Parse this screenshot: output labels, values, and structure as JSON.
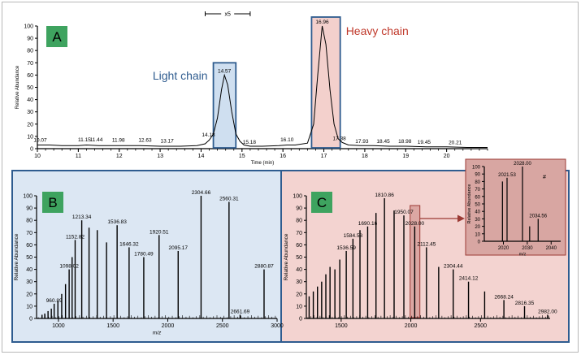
{
  "chart_data": [
    {
      "id": "A",
      "type": "line",
      "panel_label": "A",
      "xlabel": "Time (min)",
      "ylabel": "Relative Abundance",
      "xlim": [
        10,
        21
      ],
      "ylim": [
        0,
        100
      ],
      "x_ticks": [
        10,
        11,
        12,
        13,
        14,
        15,
        16,
        17,
        18,
        19,
        20
      ],
      "y_ticks": [
        0,
        10,
        20,
        30,
        40,
        50,
        60,
        70,
        80,
        90,
        100
      ],
      "zoom_label": "x5",
      "peak_boxes": [
        {
          "label": "Light chain",
          "x_from": 14.3,
          "x_to": 14.85,
          "color": "#2f5c8f",
          "fill": "#cfdff0"
        },
        {
          "label": "Heavy chain",
          "x_from": 16.7,
          "x_to": 17.4,
          "color": "#2f5c8f",
          "fill": "#f3d0cc",
          "label_color": "#c0392b"
        }
      ],
      "peak_labels": [
        {
          "x": 10.07,
          "y": 3.5,
          "text": "10.07"
        },
        {
          "x": 11.15,
          "y": 4,
          "text": "11.15"
        },
        {
          "x": 11.44,
          "y": 4,
          "text": "11.44"
        },
        {
          "x": 11.98,
          "y": 3.5,
          "text": "11.98"
        },
        {
          "x": 12.63,
          "y": 3.5,
          "text": "12.63"
        },
        {
          "x": 13.17,
          "y": 3,
          "text": "13.17"
        },
        {
          "x": 14.18,
          "y": 8,
          "text": "14.18"
        },
        {
          "x": 14.57,
          "y": 60,
          "text": "14.57"
        },
        {
          "x": 15.18,
          "y": 2,
          "text": "15.18"
        },
        {
          "x": 16.1,
          "y": 4,
          "text": "16.10"
        },
        {
          "x": 16.96,
          "y": 100,
          "text": "16.96"
        },
        {
          "x": 17.38,
          "y": 5,
          "text": "17.38"
        },
        {
          "x": 17.93,
          "y": 2.5,
          "text": "17.93"
        },
        {
          "x": 18.45,
          "y": 2.5,
          "text": "18.45"
        },
        {
          "x": 18.98,
          "y": 2.5,
          "text": "18.98"
        },
        {
          "x": 19.45,
          "y": 2,
          "text": "19.45"
        },
        {
          "x": 20.21,
          "y": 1.5,
          "text": "20.21"
        }
      ],
      "series": [
        {
          "x": [
            10.0,
            10.3,
            10.6,
            11.0,
            11.2,
            11.5,
            12.0,
            12.5,
            13.0,
            13.5,
            13.9,
            14.1,
            14.2,
            14.3,
            14.4,
            14.5,
            14.57,
            14.65,
            14.75,
            14.85,
            14.95,
            15.05,
            15.2,
            15.5,
            15.9,
            16.1,
            16.3,
            16.6,
            16.75,
            16.85,
            16.96,
            17.05,
            17.15,
            17.25,
            17.35,
            17.45,
            17.6,
            17.9,
            18.2,
            18.6,
            19.0,
            19.5,
            20.0,
            20.5,
            21.0
          ],
          "y": [
            3,
            3,
            2.5,
            2.5,
            3,
            2.5,
            2.5,
            2.5,
            2,
            2,
            2.5,
            4,
            7,
            12,
            25,
            48,
            60,
            52,
            30,
            12,
            6,
            3,
            2,
            2,
            2.5,
            3,
            3,
            4.5,
            20,
            60,
            100,
            85,
            48,
            20,
            8,
            5,
            3,
            2.5,
            2.5,
            2,
            2,
            1.5,
            1.5,
            1,
            1
          ]
        }
      ]
    },
    {
      "id": "B",
      "type": "bar",
      "panel_label": "B",
      "xlabel": "m/z",
      "ylabel": "Relative Abundance",
      "xlim": [
        800,
        3000
      ],
      "ylim": [
        0,
        100
      ],
      "x_ticks": [
        1000,
        1500,
        2000,
        2500,
        3000
      ],
      "y_ticks": [
        0,
        10,
        20,
        30,
        40,
        50,
        60,
        70,
        80,
        90,
        100
      ],
      "annotations": [
        "960.89",
        "1098.02",
        "1152.82",
        "1213.34",
        "1536.83",
        "1646.32",
        "1780.49",
        "1920.51",
        "2095.17",
        "2304.66",
        "2560.31",
        "2661.69",
        "2880.87"
      ],
      "sticks": [
        {
          "mz": 850,
          "y": 3
        },
        {
          "mz": 875,
          "y": 4
        },
        {
          "mz": 905,
          "y": 6
        },
        {
          "mz": 935,
          "y": 8
        },
        {
          "mz": 960.89,
          "y": 12,
          "label": "960.89"
        },
        {
          "mz": 995,
          "y": 14
        },
        {
          "mz": 1030,
          "y": 20
        },
        {
          "mz": 1065,
          "y": 28
        },
        {
          "mz": 1098.02,
          "y": 40,
          "label": "1098.02"
        },
        {
          "mz": 1125,
          "y": 50
        },
        {
          "mz": 1152.82,
          "y": 64,
          "label": "1152.82"
        },
        {
          "mz": 1213.34,
          "y": 80,
          "label": "1213.34"
        },
        {
          "mz": 1280,
          "y": 74
        },
        {
          "mz": 1355,
          "y": 72
        },
        {
          "mz": 1440,
          "y": 62
        },
        {
          "mz": 1536.83,
          "y": 76,
          "label": "1536.83"
        },
        {
          "mz": 1646.32,
          "y": 58,
          "label": "1646.32"
        },
        {
          "mz": 1780.49,
          "y": 50,
          "label": "1780.49"
        },
        {
          "mz": 1920.51,
          "y": 68,
          "label": "1920.51"
        },
        {
          "mz": 2095.17,
          "y": 55,
          "label": "2095.17"
        },
        {
          "mz": 2304.66,
          "y": 100,
          "label": "2304.66"
        },
        {
          "mz": 2560.31,
          "y": 95,
          "label": "2560.31"
        },
        {
          "mz": 2661.69,
          "y": 3,
          "label": "2661.69"
        },
        {
          "mz": 2880.87,
          "y": 40,
          "label": "2880.87"
        }
      ]
    },
    {
      "id": "C",
      "type": "bar",
      "panel_label": "C",
      "xlabel": "",
      "ylabel": "Relative Abundance",
      "xlim": [
        1250,
        3000
      ],
      "ylim": [
        0,
        100
      ],
      "x_ticks": [
        1500,
        2000,
        2500
      ],
      "y_ticks": [
        0,
        10,
        20,
        30,
        40,
        50,
        60,
        70,
        80,
        90,
        100
      ],
      "annotations": [
        "1536.59",
        "1584.58",
        "1690.16",
        "1810.86",
        "1950.07",
        "2028.00",
        "2112.45",
        "2304.44",
        "2414.12",
        "2668.24",
        "2816.35",
        "2982.00"
      ],
      "highlight_mz": [
        1995,
        2065
      ],
      "sticks": [
        {
          "mz": 1270,
          "y": 18
        },
        {
          "mz": 1300,
          "y": 22
        },
        {
          "mz": 1330,
          "y": 26
        },
        {
          "mz": 1360,
          "y": 30
        },
        {
          "mz": 1390,
          "y": 36
        },
        {
          "mz": 1420,
          "y": 42
        },
        {
          "mz": 1455,
          "y": 40
        },
        {
          "mz": 1490,
          "y": 48
        },
        {
          "mz": 1536.59,
          "y": 55,
          "label": "1536.59"
        },
        {
          "mz": 1584.58,
          "y": 65,
          "label": "1584.58"
        },
        {
          "mz": 1635,
          "y": 72
        },
        {
          "mz": 1690.16,
          "y": 75,
          "label": "1690.16"
        },
        {
          "mz": 1750,
          "y": 86
        },
        {
          "mz": 1810.86,
          "y": 98,
          "label": "1810.86"
        },
        {
          "mz": 1880,
          "y": 88
        },
        {
          "mz": 1950.07,
          "y": 84,
          "label": "1950.07"
        },
        {
          "mz": 2028.0,
          "y": 75,
          "label": "2028.00"
        },
        {
          "mz": 2112.45,
          "y": 58,
          "label": "2112.45"
        },
        {
          "mz": 2200,
          "y": 42
        },
        {
          "mz": 2304.44,
          "y": 40,
          "label": "2304.44"
        },
        {
          "mz": 2414.12,
          "y": 30,
          "label": "2414.12"
        },
        {
          "mz": 2530,
          "y": 22
        },
        {
          "mz": 2668.24,
          "y": 15,
          "label": "2668.24"
        },
        {
          "mz": 2816.35,
          "y": 10,
          "label": "2816.35"
        },
        {
          "mz": 2982.0,
          "y": 3,
          "label": "2982.00"
        }
      ]
    },
    {
      "id": "C-inset",
      "type": "bar",
      "xlabel": "m/z",
      "ylabel": "Relative Abundance",
      "xlim": [
        2012,
        2044
      ],
      "ylim": [
        0,
        100
      ],
      "x_ticks": [
        2020,
        2030,
        2040
      ],
      "y_ticks": [
        0,
        10,
        20,
        30,
        40,
        50,
        60,
        70,
        80,
        90,
        100
      ],
      "marker": "#",
      "sticks": [
        {
          "mz": 2019.6,
          "y": 80
        },
        {
          "mz": 2021.53,
          "y": 85,
          "label": "2021.53"
        },
        {
          "mz": 2028.0,
          "y": 100,
          "label": "2028.00"
        },
        {
          "mz": 2031.0,
          "y": 20
        },
        {
          "mz": 2034.56,
          "y": 30,
          "label": "2034.56"
        }
      ]
    }
  ]
}
